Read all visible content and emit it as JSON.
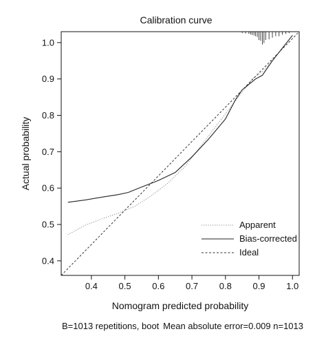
{
  "chart_data": {
    "type": "line",
    "title": "Calibration curve",
    "xlabel": "Nomogram predicted probability",
    "ylabel": "Actual probability",
    "xlim": [
      0.31,
      1.02
    ],
    "ylim": [
      0.36,
      1.03
    ],
    "xticks": [
      "0.4",
      "0.5",
      "0.6",
      "0.7",
      "0.8",
      "0.9",
      "1.0"
    ],
    "xtick_values": [
      0.4,
      0.5,
      0.6,
      0.7,
      0.8,
      0.9,
      1.0
    ],
    "yticks": [
      "0.4",
      "0.5",
      "0.6",
      "0.7",
      "0.8",
      "0.9",
      "1.0"
    ],
    "ytick_values": [
      0.4,
      0.5,
      0.6,
      0.7,
      0.8,
      0.9,
      1.0
    ],
    "grid": false,
    "legend_position": "bottom-right",
    "series": [
      {
        "name": "Apparent",
        "style": "dotted",
        "color": "#888888",
        "x": [
          0.33,
          0.38,
          0.43,
          0.48,
          0.53,
          0.58,
          0.63,
          0.68,
          0.73,
          0.78,
          0.83,
          0.86,
          0.88,
          0.91,
          0.94,
          0.97,
          1.0
        ],
        "y": [
          0.472,
          0.497,
          0.515,
          0.531,
          0.55,
          0.58,
          0.615,
          0.66,
          0.72,
          0.78,
          0.84,
          0.875,
          0.9,
          0.92,
          0.95,
          0.985,
          1.02
        ]
      },
      {
        "name": "Bias-corrected",
        "style": "solid",
        "color": "#222222",
        "x": [
          0.33,
          0.38,
          0.43,
          0.48,
          0.51,
          0.55,
          0.6,
          0.65,
          0.7,
          0.75,
          0.8,
          0.83,
          0.85,
          0.87,
          0.89,
          0.91,
          0.94,
          0.97,
          1.0
        ],
        "y": [
          0.561,
          0.567,
          0.575,
          0.582,
          0.588,
          0.603,
          0.621,
          0.643,
          0.686,
          0.735,
          0.79,
          0.843,
          0.87,
          0.885,
          0.9,
          0.91,
          0.95,
          0.985,
          1.02
        ]
      },
      {
        "name": "Ideal",
        "style": "dashed",
        "color": "#333333",
        "x": [
          0.31,
          1.02
        ],
        "y": [
          0.36,
          1.03
        ]
      }
    ],
    "rug": {
      "x": [
        0.85,
        0.86,
        0.87,
        0.875,
        0.88,
        0.885,
        0.89,
        0.895,
        0.9,
        0.905,
        0.91,
        0.915,
        0.92,
        0.93,
        0.94,
        0.95,
        0.96,
        0.97,
        0.98,
        0.99
      ],
      "h": [
        0.1,
        0.12,
        0.15,
        0.18,
        0.22,
        0.25,
        0.3,
        0.35,
        0.55,
        0.6,
        0.85,
        0.75,
        0.55,
        0.5,
        0.4,
        0.3,
        0.3,
        0.2,
        0.15,
        0.1
      ]
    },
    "footer": {
      "left": "B=1013 repetitions, boot",
      "right": "Mean absolute error=0.009 n=1013"
    }
  }
}
